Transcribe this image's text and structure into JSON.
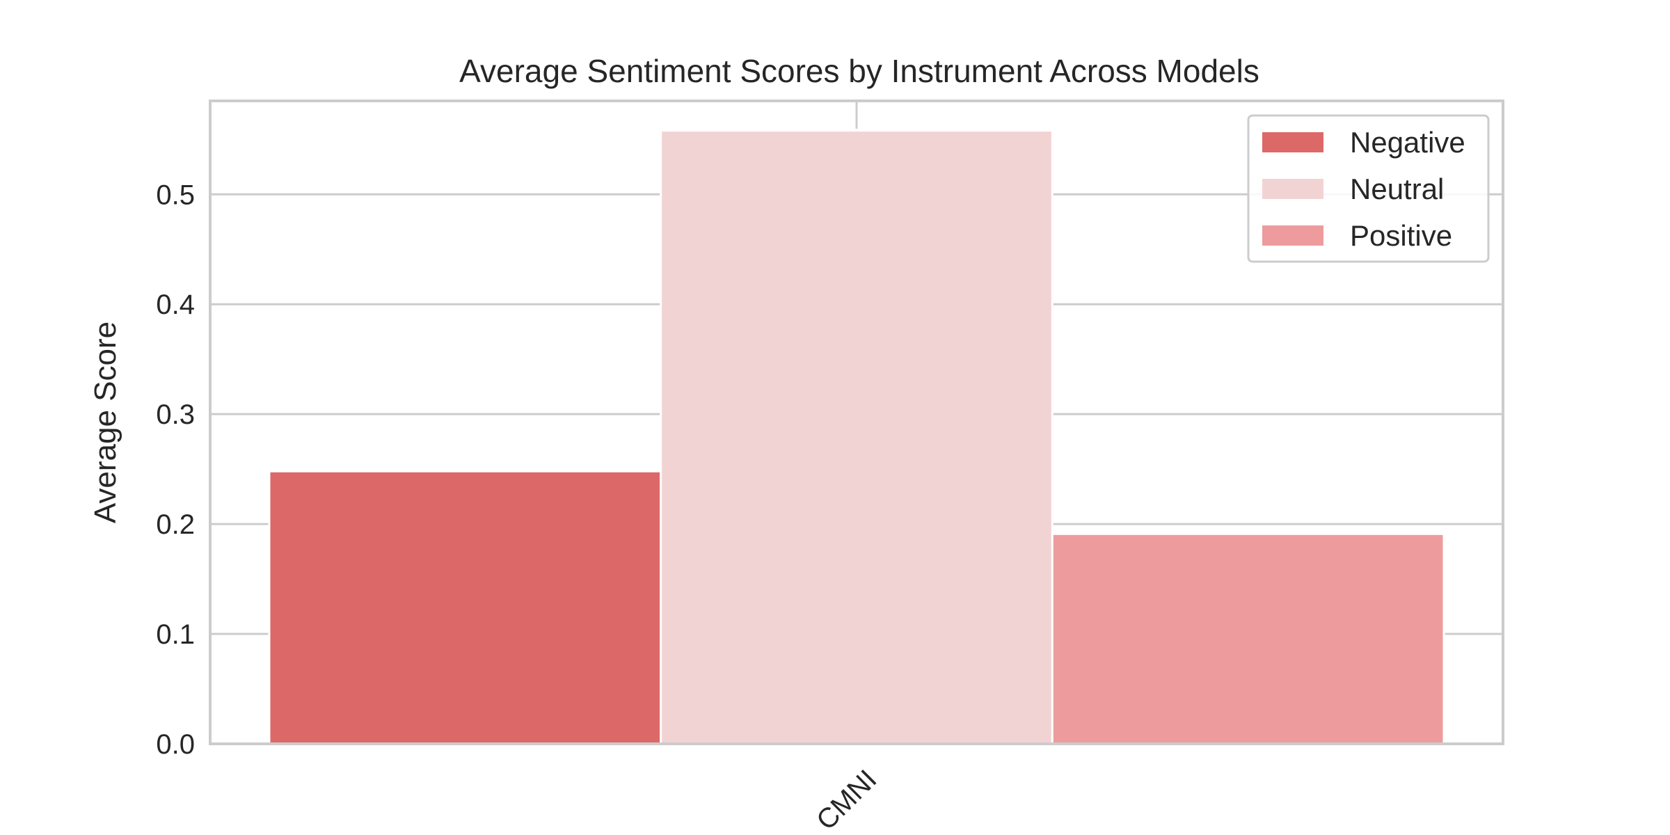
{
  "chart_data": {
    "type": "bar",
    "title": "Average Sentiment Scores by Instrument Across Models",
    "xlabel": "",
    "ylabel": "Average Score",
    "categories": [
      "CMNI"
    ],
    "series": [
      {
        "name": "Negative",
        "values": [
          0.248
        ],
        "color": "#dd6868"
      },
      {
        "name": "Neutral",
        "values": [
          0.558
        ],
        "color": "#f2d3d3"
      },
      {
        "name": "Positive",
        "values": [
          0.191
        ],
        "color": "#ed9b9c"
      }
    ],
    "ylim": [
      0,
      0.585
    ],
    "yticks": [
      0.0,
      0.1,
      0.2,
      0.3,
      0.4,
      0.5
    ],
    "ytick_labels": [
      "0.0",
      "0.1",
      "0.2",
      "0.3",
      "0.4",
      "0.5"
    ],
    "grid": true,
    "legend_position": "top-right"
  }
}
